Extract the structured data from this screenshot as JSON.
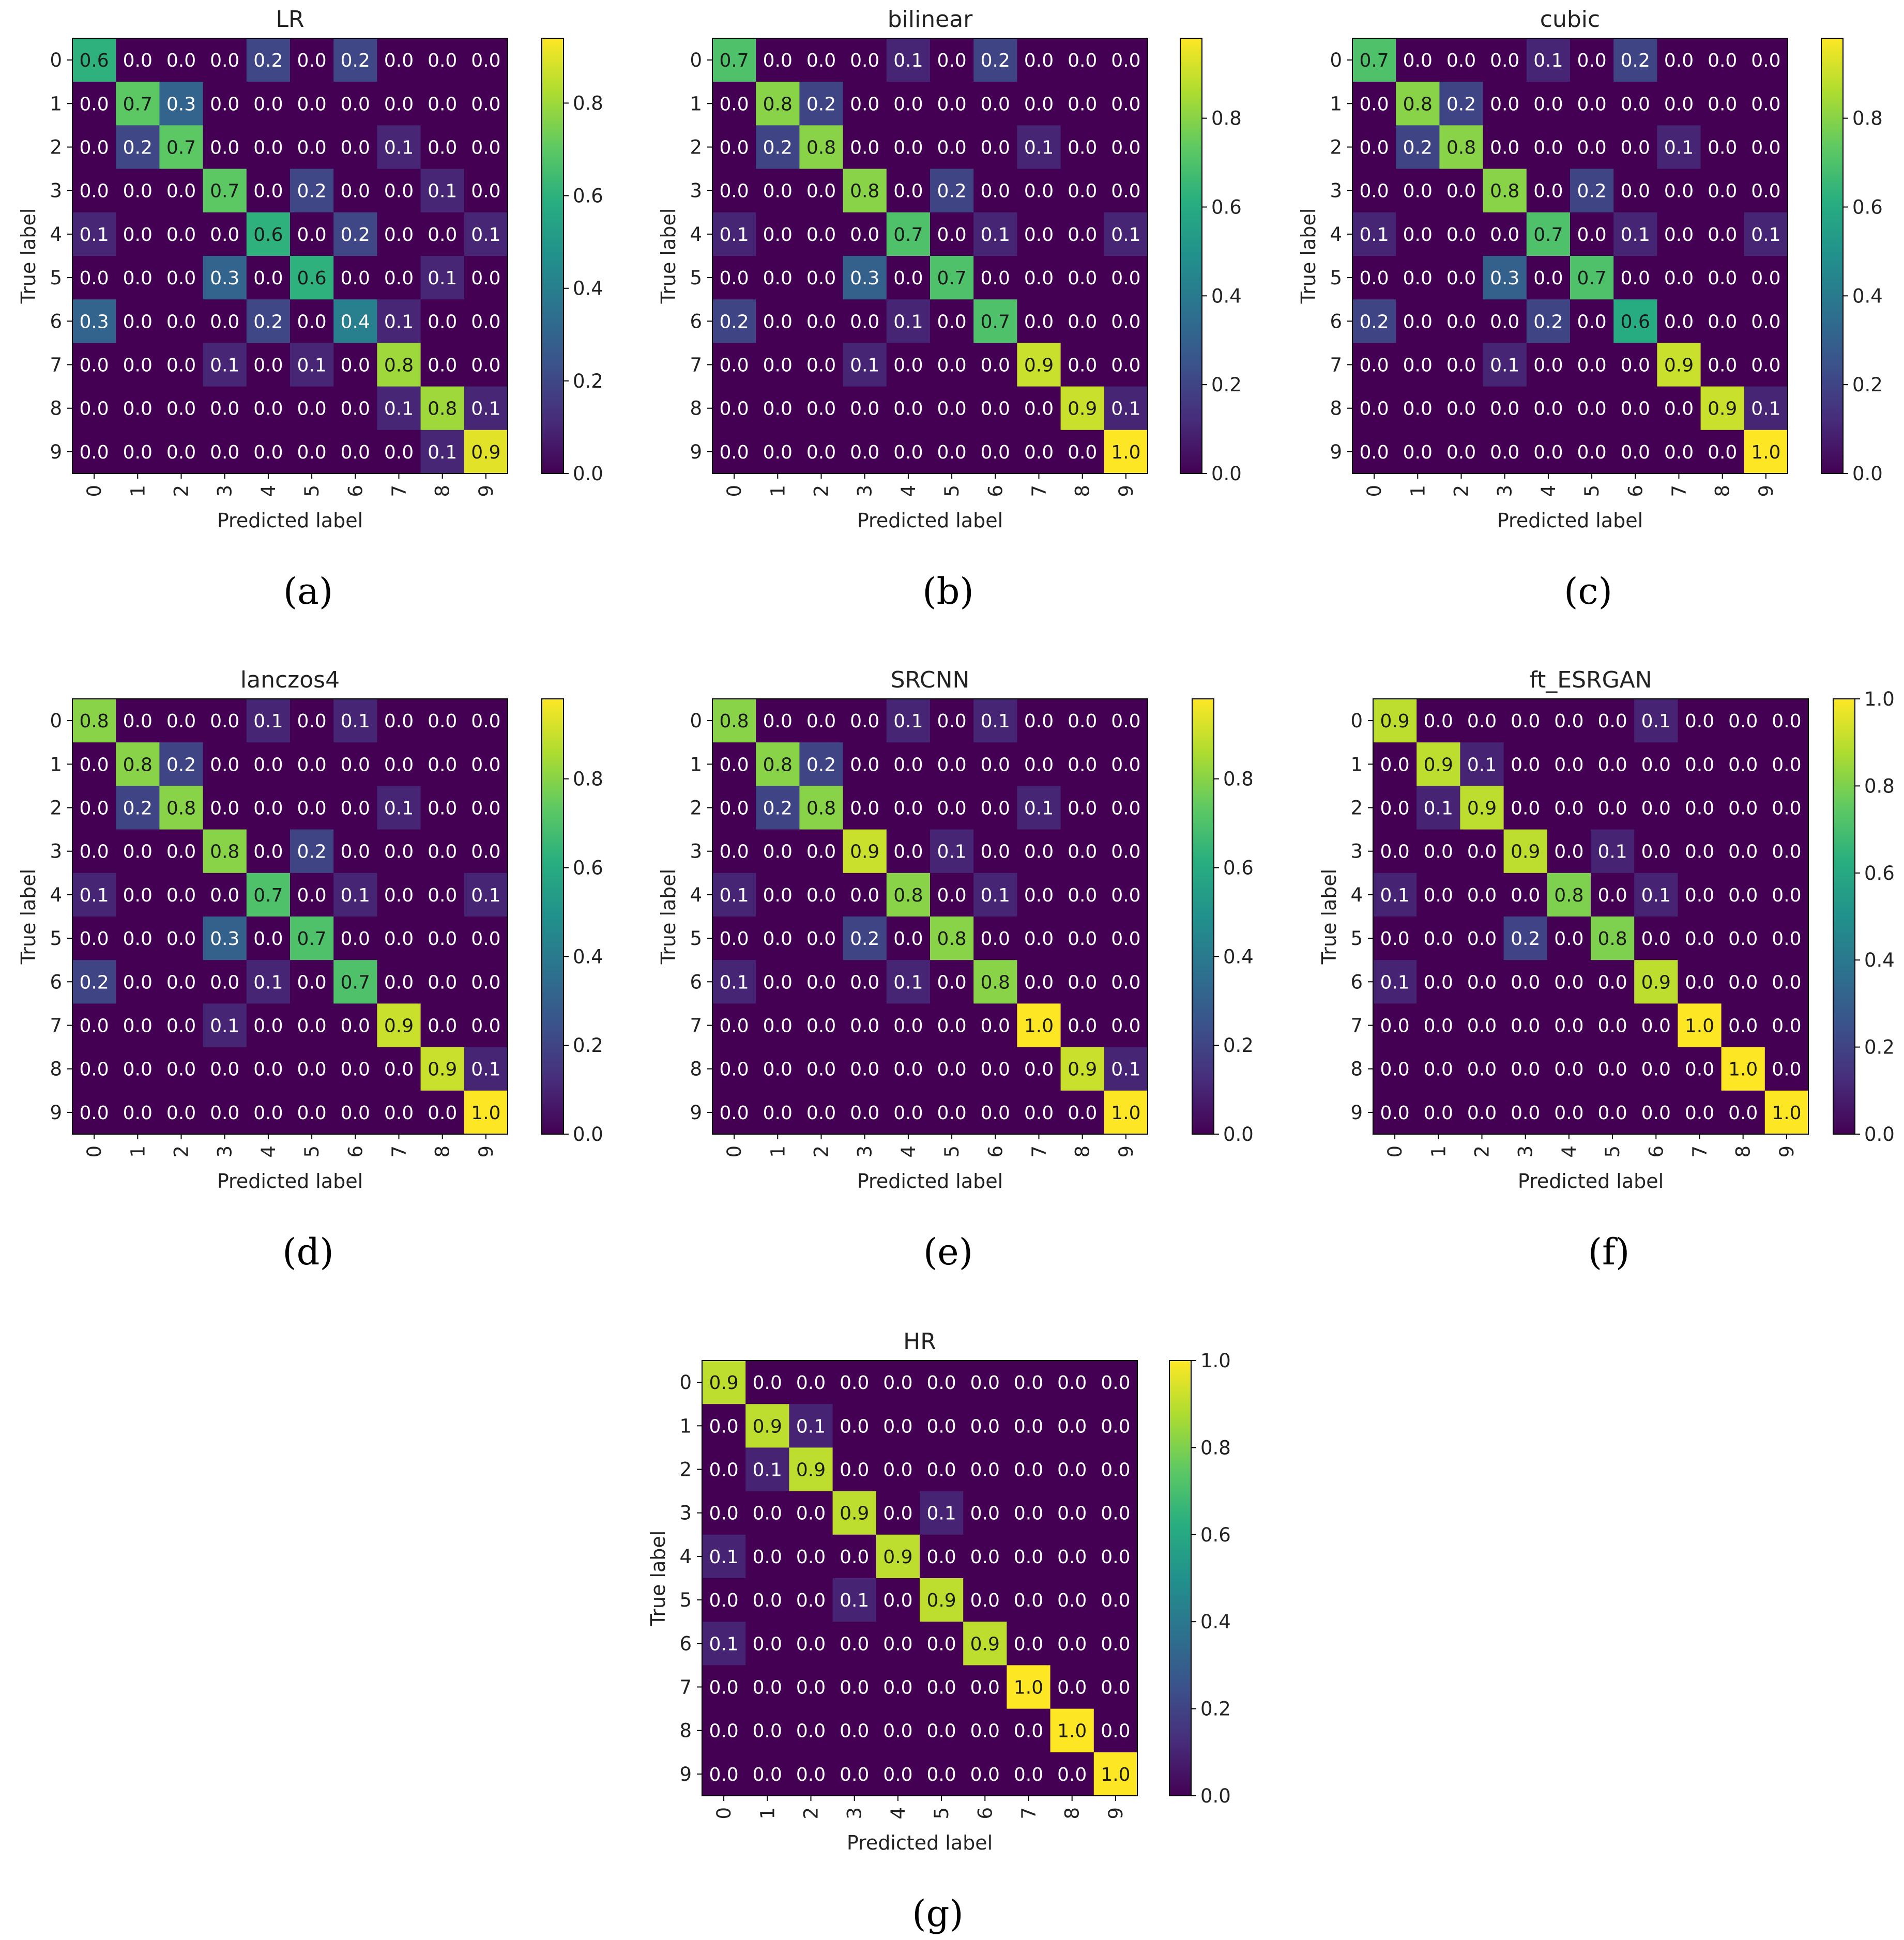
{
  "axis_labels": {
    "x": "Predicted label",
    "y": "True label"
  },
  "colormap": "viridis",
  "chart_data": [
    {
      "type": "heatmap",
      "caption": "(a)",
      "title": "LR",
      "xlabel": "Predicted label",
      "ylabel": "True label",
      "x_ticks": [
        "0",
        "1",
        "2",
        "3",
        "4",
        "5",
        "6",
        "7",
        "8",
        "9"
      ],
      "y_ticks": [
        "0",
        "1",
        "2",
        "3",
        "4",
        "5",
        "6",
        "7",
        "8",
        "9"
      ],
      "colorbar_range": [
        0,
        0.94
      ],
      "colorbar_ticks": [
        "0.0",
        "0.2",
        "0.4",
        "0.6",
        "0.8"
      ],
      "matrix": [
        [
          0.6,
          0.0,
          0.0,
          0.0,
          0.2,
          0.0,
          0.2,
          0.0,
          0.0,
          0.0
        ],
        [
          0.0,
          0.7,
          0.3,
          0.0,
          0.0,
          0.0,
          0.0,
          0.0,
          0.0,
          0.0
        ],
        [
          0.0,
          0.2,
          0.7,
          0.0,
          0.0,
          0.0,
          0.0,
          0.1,
          0.0,
          0.0
        ],
        [
          0.0,
          0.0,
          0.0,
          0.7,
          0.0,
          0.2,
          0.0,
          0.0,
          0.1,
          0.0
        ],
        [
          0.1,
          0.0,
          0.0,
          0.0,
          0.6,
          0.0,
          0.2,
          0.0,
          0.0,
          0.1
        ],
        [
          0.0,
          0.0,
          0.0,
          0.3,
          0.0,
          0.6,
          0.0,
          0.0,
          0.1,
          0.0
        ],
        [
          0.3,
          0.0,
          0.0,
          0.0,
          0.2,
          0.0,
          0.4,
          0.1,
          0.0,
          0.0
        ],
        [
          0.0,
          0.0,
          0.0,
          0.1,
          0.0,
          0.1,
          0.0,
          0.8,
          0.0,
          0.0
        ],
        [
          0.0,
          0.0,
          0.0,
          0.0,
          0.0,
          0.0,
          0.0,
          0.1,
          0.8,
          0.1
        ],
        [
          0.0,
          0.0,
          0.0,
          0.0,
          0.0,
          0.0,
          0.0,
          0.0,
          0.1,
          0.9
        ]
      ]
    },
    {
      "type": "heatmap",
      "caption": "(b)",
      "title": "bilinear",
      "xlabel": "Predicted label",
      "ylabel": "True label",
      "x_ticks": [
        "0",
        "1",
        "2",
        "3",
        "4",
        "5",
        "6",
        "7",
        "8",
        "9"
      ],
      "y_ticks": [
        "0",
        "1",
        "2",
        "3",
        "4",
        "5",
        "6",
        "7",
        "8",
        "9"
      ],
      "colorbar_range": [
        0,
        0.98
      ],
      "colorbar_ticks": [
        "0.0",
        "0.2",
        "0.4",
        "0.6",
        "0.8"
      ],
      "matrix": [
        [
          0.7,
          0.0,
          0.0,
          0.0,
          0.1,
          0.0,
          0.2,
          0.0,
          0.0,
          0.0
        ],
        [
          0.0,
          0.8,
          0.2,
          0.0,
          0.0,
          0.0,
          0.0,
          0.0,
          0.0,
          0.0
        ],
        [
          0.0,
          0.2,
          0.8,
          0.0,
          0.0,
          0.0,
          0.0,
          0.1,
          0.0,
          0.0
        ],
        [
          0.0,
          0.0,
          0.0,
          0.8,
          0.0,
          0.2,
          0.0,
          0.0,
          0.0,
          0.0
        ],
        [
          0.1,
          0.0,
          0.0,
          0.0,
          0.7,
          0.0,
          0.1,
          0.0,
          0.0,
          0.1
        ],
        [
          0.0,
          0.0,
          0.0,
          0.3,
          0.0,
          0.7,
          0.0,
          0.0,
          0.0,
          0.0
        ],
        [
          0.2,
          0.0,
          0.0,
          0.0,
          0.1,
          0.0,
          0.7,
          0.0,
          0.0,
          0.0
        ],
        [
          0.0,
          0.0,
          0.0,
          0.1,
          0.0,
          0.0,
          0.0,
          0.9,
          0.0,
          0.0
        ],
        [
          0.0,
          0.0,
          0.0,
          0.0,
          0.0,
          0.0,
          0.0,
          0.0,
          0.9,
          0.1
        ],
        [
          0.0,
          0.0,
          0.0,
          0.0,
          0.0,
          0.0,
          0.0,
          0.0,
          0.0,
          1.0
        ]
      ]
    },
    {
      "type": "heatmap",
      "caption": "(c)",
      "title": "cubic",
      "xlabel": "Predicted label",
      "ylabel": "True label",
      "x_ticks": [
        "0",
        "1",
        "2",
        "3",
        "4",
        "5",
        "6",
        "7",
        "8",
        "9"
      ],
      "y_ticks": [
        "0",
        "1",
        "2",
        "3",
        "4",
        "5",
        "6",
        "7",
        "8",
        "9"
      ],
      "colorbar_range": [
        0,
        0.98
      ],
      "colorbar_ticks": [
        "0.0",
        "0.2",
        "0.4",
        "0.6",
        "0.8"
      ],
      "matrix": [
        [
          0.7,
          0.0,
          0.0,
          0.0,
          0.1,
          0.0,
          0.2,
          0.0,
          0.0,
          0.0
        ],
        [
          0.0,
          0.8,
          0.2,
          0.0,
          0.0,
          0.0,
          0.0,
          0.0,
          0.0,
          0.0
        ],
        [
          0.0,
          0.2,
          0.8,
          0.0,
          0.0,
          0.0,
          0.0,
          0.1,
          0.0,
          0.0
        ],
        [
          0.0,
          0.0,
          0.0,
          0.8,
          0.0,
          0.2,
          0.0,
          0.0,
          0.0,
          0.0
        ],
        [
          0.1,
          0.0,
          0.0,
          0.0,
          0.7,
          0.0,
          0.1,
          0.0,
          0.0,
          0.1
        ],
        [
          0.0,
          0.0,
          0.0,
          0.3,
          0.0,
          0.7,
          0.0,
          0.0,
          0.0,
          0.0
        ],
        [
          0.2,
          0.0,
          0.0,
          0.0,
          0.2,
          0.0,
          0.6,
          0.0,
          0.0,
          0.0
        ],
        [
          0.0,
          0.0,
          0.0,
          0.1,
          0.0,
          0.0,
          0.0,
          0.9,
          0.0,
          0.0
        ],
        [
          0.0,
          0.0,
          0.0,
          0.0,
          0.0,
          0.0,
          0.0,
          0.0,
          0.9,
          0.1
        ],
        [
          0.0,
          0.0,
          0.0,
          0.0,
          0.0,
          0.0,
          0.0,
          0.0,
          0.0,
          1.0
        ]
      ]
    },
    {
      "type": "heatmap",
      "caption": "(d)",
      "title": "lanczos4",
      "xlabel": "Predicted label",
      "ylabel": "True label",
      "x_ticks": [
        "0",
        "1",
        "2",
        "3",
        "4",
        "5",
        "6",
        "7",
        "8",
        "9"
      ],
      "y_ticks": [
        "0",
        "1",
        "2",
        "3",
        "4",
        "5",
        "6",
        "7",
        "8",
        "9"
      ],
      "colorbar_range": [
        0,
        0.98
      ],
      "colorbar_ticks": [
        "0.0",
        "0.2",
        "0.4",
        "0.6",
        "0.8"
      ],
      "matrix": [
        [
          0.8,
          0.0,
          0.0,
          0.0,
          0.1,
          0.0,
          0.1,
          0.0,
          0.0,
          0.0
        ],
        [
          0.0,
          0.8,
          0.2,
          0.0,
          0.0,
          0.0,
          0.0,
          0.0,
          0.0,
          0.0
        ],
        [
          0.0,
          0.2,
          0.8,
          0.0,
          0.0,
          0.0,
          0.0,
          0.1,
          0.0,
          0.0
        ],
        [
          0.0,
          0.0,
          0.0,
          0.8,
          0.0,
          0.2,
          0.0,
          0.0,
          0.0,
          0.0
        ],
        [
          0.1,
          0.0,
          0.0,
          0.0,
          0.7,
          0.0,
          0.1,
          0.0,
          0.0,
          0.1
        ],
        [
          0.0,
          0.0,
          0.0,
          0.3,
          0.0,
          0.7,
          0.0,
          0.0,
          0.0,
          0.0
        ],
        [
          0.2,
          0.0,
          0.0,
          0.0,
          0.1,
          0.0,
          0.7,
          0.0,
          0.0,
          0.0
        ],
        [
          0.0,
          0.0,
          0.0,
          0.1,
          0.0,
          0.0,
          0.0,
          0.9,
          0.0,
          0.0
        ],
        [
          0.0,
          0.0,
          0.0,
          0.0,
          0.0,
          0.0,
          0.0,
          0.0,
          0.9,
          0.1
        ],
        [
          0.0,
          0.0,
          0.0,
          0.0,
          0.0,
          0.0,
          0.0,
          0.0,
          0.0,
          1.0
        ]
      ]
    },
    {
      "type": "heatmap",
      "caption": "(e)",
      "title": "SRCNN",
      "xlabel": "Predicted label",
      "ylabel": "True label",
      "x_ticks": [
        "0",
        "1",
        "2",
        "3",
        "4",
        "5",
        "6",
        "7",
        "8",
        "9"
      ],
      "y_ticks": [
        "0",
        "1",
        "2",
        "3",
        "4",
        "5",
        "6",
        "7",
        "8",
        "9"
      ],
      "colorbar_range": [
        0,
        0.98
      ],
      "colorbar_ticks": [
        "0.0",
        "0.2",
        "0.4",
        "0.6",
        "0.8"
      ],
      "matrix": [
        [
          0.8,
          0.0,
          0.0,
          0.0,
          0.1,
          0.0,
          0.1,
          0.0,
          0.0,
          0.0
        ],
        [
          0.0,
          0.8,
          0.2,
          0.0,
          0.0,
          0.0,
          0.0,
          0.0,
          0.0,
          0.0
        ],
        [
          0.0,
          0.2,
          0.8,
          0.0,
          0.0,
          0.0,
          0.0,
          0.1,
          0.0,
          0.0
        ],
        [
          0.0,
          0.0,
          0.0,
          0.9,
          0.0,
          0.1,
          0.0,
          0.0,
          0.0,
          0.0
        ],
        [
          0.1,
          0.0,
          0.0,
          0.0,
          0.8,
          0.0,
          0.1,
          0.0,
          0.0,
          0.0
        ],
        [
          0.0,
          0.0,
          0.0,
          0.2,
          0.0,
          0.8,
          0.0,
          0.0,
          0.0,
          0.0
        ],
        [
          0.1,
          0.0,
          0.0,
          0.0,
          0.1,
          0.0,
          0.8,
          0.0,
          0.0,
          0.0
        ],
        [
          0.0,
          0.0,
          0.0,
          0.0,
          0.0,
          0.0,
          0.0,
          1.0,
          0.0,
          0.0
        ],
        [
          0.0,
          0.0,
          0.0,
          0.0,
          0.0,
          0.0,
          0.0,
          0.0,
          0.9,
          0.1
        ],
        [
          0.0,
          0.0,
          0.0,
          0.0,
          0.0,
          0.0,
          0.0,
          0.0,
          0.0,
          1.0
        ]
      ]
    },
    {
      "type": "heatmap",
      "caption": "(f)",
      "title": "ft_ESRGAN",
      "xlabel": "Predicted label",
      "ylabel": "True label",
      "x_ticks": [
        "0",
        "1",
        "2",
        "3",
        "4",
        "5",
        "6",
        "7",
        "8",
        "9"
      ],
      "y_ticks": [
        "0",
        "1",
        "2",
        "3",
        "4",
        "5",
        "6",
        "7",
        "8",
        "9"
      ],
      "colorbar_range": [
        0,
        1.0
      ],
      "colorbar_ticks": [
        "0.0",
        "0.2",
        "0.4",
        "0.6",
        "0.8",
        "1.0"
      ],
      "matrix": [
        [
          0.9,
          0.0,
          0.0,
          0.0,
          0.0,
          0.0,
          0.1,
          0.0,
          0.0,
          0.0
        ],
        [
          0.0,
          0.9,
          0.1,
          0.0,
          0.0,
          0.0,
          0.0,
          0.0,
          0.0,
          0.0
        ],
        [
          0.0,
          0.1,
          0.9,
          0.0,
          0.0,
          0.0,
          0.0,
          0.0,
          0.0,
          0.0
        ],
        [
          0.0,
          0.0,
          0.0,
          0.9,
          0.0,
          0.1,
          0.0,
          0.0,
          0.0,
          0.0
        ],
        [
          0.1,
          0.0,
          0.0,
          0.0,
          0.8,
          0.0,
          0.1,
          0.0,
          0.0,
          0.0
        ],
        [
          0.0,
          0.0,
          0.0,
          0.2,
          0.0,
          0.8,
          0.0,
          0.0,
          0.0,
          0.0
        ],
        [
          0.1,
          0.0,
          0.0,
          0.0,
          0.0,
          0.0,
          0.9,
          0.0,
          0.0,
          0.0
        ],
        [
          0.0,
          0.0,
          0.0,
          0.0,
          0.0,
          0.0,
          0.0,
          1.0,
          0.0,
          0.0
        ],
        [
          0.0,
          0.0,
          0.0,
          0.0,
          0.0,
          0.0,
          0.0,
          0.0,
          1.0,
          0.0
        ],
        [
          0.0,
          0.0,
          0.0,
          0.0,
          0.0,
          0.0,
          0.0,
          0.0,
          0.0,
          1.0
        ]
      ]
    },
    {
      "type": "heatmap",
      "caption": "(g)",
      "title": "HR",
      "xlabel": "Predicted label",
      "ylabel": "True label",
      "x_ticks": [
        "0",
        "1",
        "2",
        "3",
        "4",
        "5",
        "6",
        "7",
        "8",
        "9"
      ],
      "y_ticks": [
        "0",
        "1",
        "2",
        "3",
        "4",
        "5",
        "6",
        "7",
        "8",
        "9"
      ],
      "colorbar_range": [
        0,
        1.0
      ],
      "colorbar_ticks": [
        "0.0",
        "0.2",
        "0.4",
        "0.6",
        "0.8",
        "1.0"
      ],
      "matrix": [
        [
          0.9,
          0.0,
          0.0,
          0.0,
          0.0,
          0.0,
          0.0,
          0.0,
          0.0,
          0.0
        ],
        [
          0.0,
          0.9,
          0.1,
          0.0,
          0.0,
          0.0,
          0.0,
          0.0,
          0.0,
          0.0
        ],
        [
          0.0,
          0.1,
          0.9,
          0.0,
          0.0,
          0.0,
          0.0,
          0.0,
          0.0,
          0.0
        ],
        [
          0.0,
          0.0,
          0.0,
          0.9,
          0.0,
          0.1,
          0.0,
          0.0,
          0.0,
          0.0
        ],
        [
          0.1,
          0.0,
          0.0,
          0.0,
          0.9,
          0.0,
          0.0,
          0.0,
          0.0,
          0.0
        ],
        [
          0.0,
          0.0,
          0.0,
          0.1,
          0.0,
          0.9,
          0.0,
          0.0,
          0.0,
          0.0
        ],
        [
          0.1,
          0.0,
          0.0,
          0.0,
          0.0,
          0.0,
          0.9,
          0.0,
          0.0,
          0.0
        ],
        [
          0.0,
          0.0,
          0.0,
          0.0,
          0.0,
          0.0,
          0.0,
          1.0,
          0.0,
          0.0
        ],
        [
          0.0,
          0.0,
          0.0,
          0.0,
          0.0,
          0.0,
          0.0,
          0.0,
          1.0,
          0.0
        ],
        [
          0.0,
          0.0,
          0.0,
          0.0,
          0.0,
          0.0,
          0.0,
          0.0,
          0.0,
          1.0
        ]
      ]
    }
  ]
}
